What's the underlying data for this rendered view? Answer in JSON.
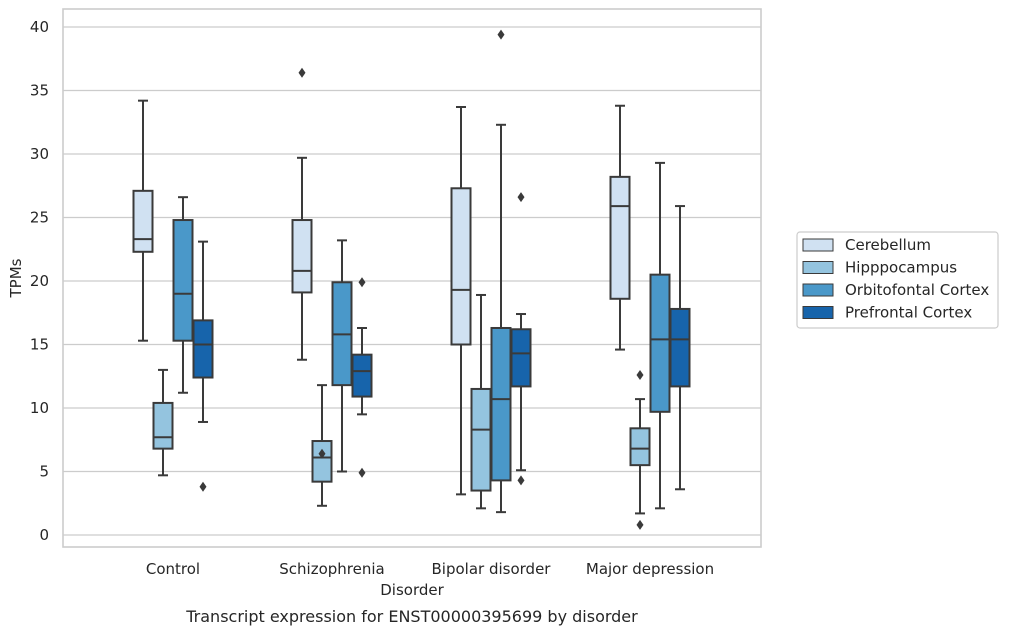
{
  "caption": "Transcript expression for ENST00000395699 by disorder",
  "chart_data": {
    "type": "box",
    "xlabel": "Disorder",
    "ylabel": "TPMs",
    "ylim": [
      -1,
      41.5
    ],
    "y_ticks": [
      0,
      5,
      10,
      15,
      20,
      25,
      30,
      35,
      40
    ],
    "grid": "horizontal",
    "legend_position": "right",
    "categories": [
      "Control",
      "Schizophrenia",
      "Bipolar disorder",
      "Major depression"
    ],
    "series": [
      {
        "name": "Cerebellum",
        "color": "#d0e1f2",
        "boxes": [
          {
            "whislo": 15.3,
            "q1": 22.3,
            "med": 23.3,
            "q3": 27.1,
            "whishi": 34.2,
            "fliers": []
          },
          {
            "whislo": 13.8,
            "q1": 19.1,
            "med": 20.8,
            "q3": 24.8,
            "whishi": 29.7,
            "fliers": [
              36.4
            ]
          },
          {
            "whislo": 3.2,
            "q1": 15.0,
            "med": 19.3,
            "q3": 27.3,
            "whishi": 33.7,
            "fliers": []
          },
          {
            "whislo": 14.6,
            "q1": 18.6,
            "med": 25.9,
            "q3": 28.2,
            "whishi": 33.8,
            "fliers": []
          }
        ]
      },
      {
        "name": "Hipppocampus",
        "color": "#94c4df",
        "boxes": [
          {
            "whislo": 4.7,
            "q1": 6.8,
            "med": 7.7,
            "q3": 10.4,
            "whishi": 13.0,
            "fliers": []
          },
          {
            "whislo": 2.3,
            "q1": 4.2,
            "med": 6.1,
            "q3": 7.4,
            "whishi": 11.8,
            "fliers": [
              6.4
            ]
          },
          {
            "whislo": 2.1,
            "q1": 3.5,
            "med": 8.3,
            "q3": 11.5,
            "whishi": 18.9,
            "fliers": []
          },
          {
            "whislo": 1.7,
            "q1": 5.5,
            "med": 6.8,
            "q3": 8.4,
            "whishi": 10.7,
            "fliers": [
              0.8,
              12.6
            ]
          }
        ]
      },
      {
        "name": "Orbitofontal Cortex",
        "color": "#4a98c9",
        "boxes": [
          {
            "whislo": 11.2,
            "q1": 15.3,
            "med": 19.0,
            "q3": 24.8,
            "whishi": 26.6,
            "fliers": []
          },
          {
            "whislo": 5.0,
            "q1": 11.8,
            "med": 15.8,
            "q3": 19.9,
            "whishi": 23.2,
            "fliers": []
          },
          {
            "whislo": 1.8,
            "q1": 4.3,
            "med": 10.7,
            "q3": 16.3,
            "whishi": 32.3,
            "fliers": [
              39.4
            ]
          },
          {
            "whislo": 2.1,
            "q1": 9.7,
            "med": 15.4,
            "q3": 20.5,
            "whishi": 29.3,
            "fliers": []
          }
        ]
      },
      {
        "name": "Prefrontal Cortex",
        "color": "#1764ab",
        "boxes": [
          {
            "whislo": 8.9,
            "q1": 12.4,
            "med": 15.0,
            "q3": 16.9,
            "whishi": 23.1,
            "fliers": [
              3.8
            ]
          },
          {
            "whislo": 9.5,
            "q1": 10.9,
            "med": 12.9,
            "q3": 14.2,
            "whishi": 16.3,
            "fliers": [
              4.9,
              19.9
            ]
          },
          {
            "whislo": 5.1,
            "q1": 11.7,
            "med": 14.3,
            "q3": 16.2,
            "whishi": 17.4,
            "fliers": [
              4.3,
              26.6
            ]
          },
          {
            "whislo": 3.6,
            "q1": 11.7,
            "med": 15.4,
            "q3": 17.8,
            "whishi": 25.9,
            "fliers": []
          }
        ]
      }
    ]
  }
}
